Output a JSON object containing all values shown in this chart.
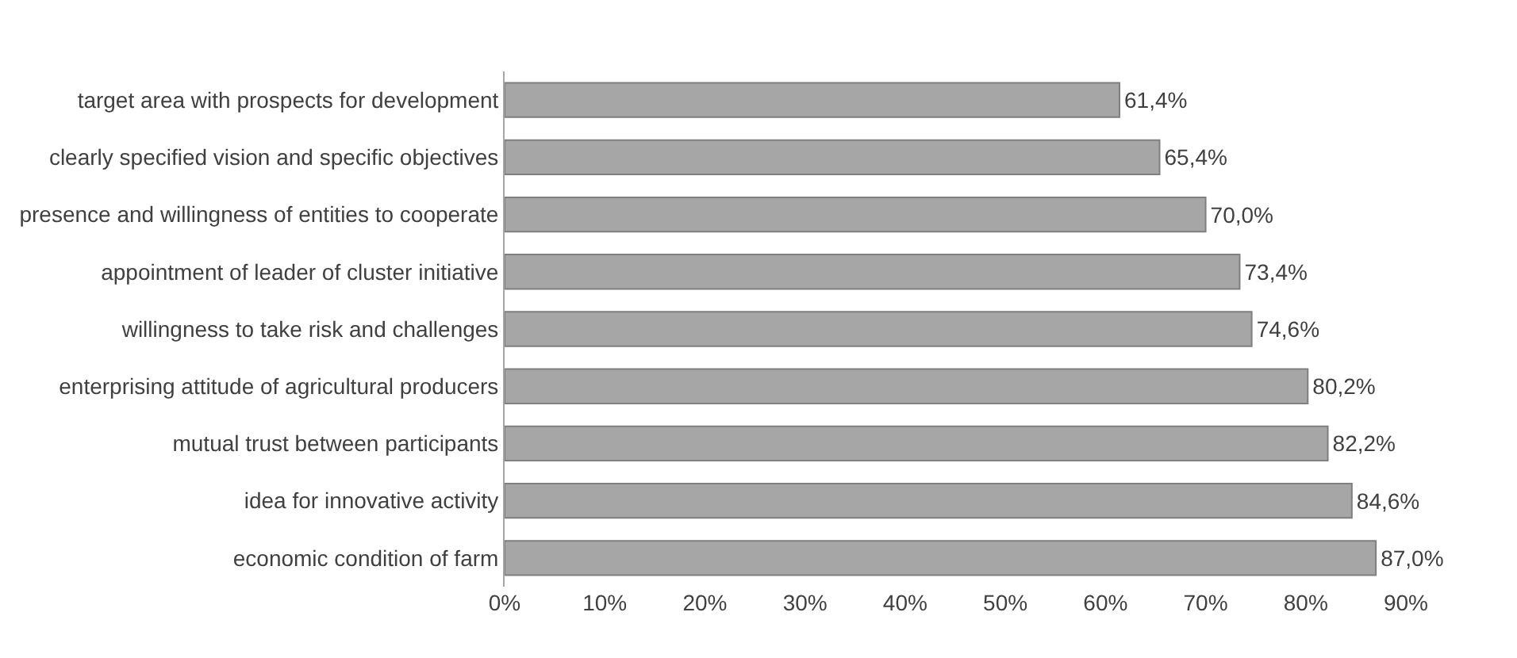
{
  "chart_data": {
    "type": "bar",
    "orientation": "horizontal",
    "categories": [
      "target area with prospects for development",
      "clearly specified vision and specific objectives",
      "presence and willingness of entities to cooperate",
      "appointment of leader of cluster initiative",
      "willingness to take risk and challenges",
      "enterprising attitude of agricultural producers",
      "mutual trust between participants",
      "idea for innovative activity",
      "economic condition of farm"
    ],
    "values": [
      61.4,
      65.4,
      70.0,
      73.4,
      74.6,
      80.2,
      82.2,
      84.6,
      87.0
    ],
    "value_labels": [
      "61,4%",
      "65,4%",
      "70,0%",
      "73,4%",
      "74,6%",
      "80,2%",
      "82,2%",
      "84,6%",
      "87,0%"
    ],
    "color": "#a6a6a6",
    "xlim": [
      0,
      90
    ],
    "xticks": [
      {
        "value": 0,
        "label": "0%"
      },
      {
        "value": 10,
        "label": "10%"
      },
      {
        "value": 20,
        "label": "20%"
      },
      {
        "value": 30,
        "label": "30%"
      },
      {
        "value": 40,
        "label": "40%"
      },
      {
        "value": 50,
        "label": "50%"
      },
      {
        "value": 60,
        "label": "60%"
      },
      {
        "value": 70,
        "label": "70%"
      },
      {
        "value": 80,
        "label": "80%"
      },
      {
        "value": 90,
        "label": "90%"
      }
    ],
    "grid": false,
    "legend": false
  }
}
